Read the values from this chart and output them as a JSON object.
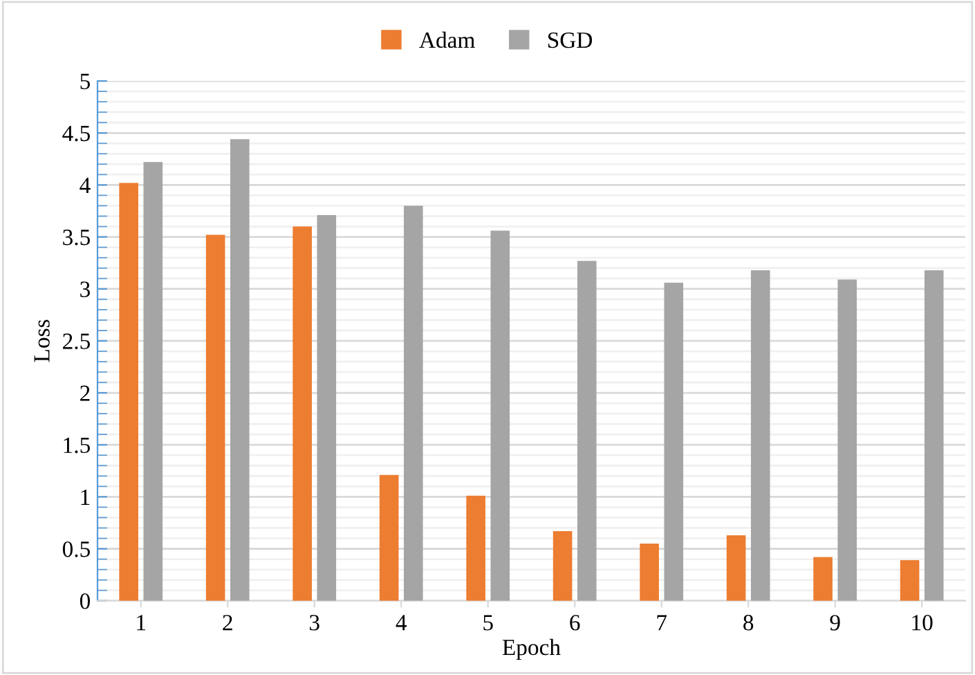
{
  "chart_data": {
    "type": "bar",
    "xlabel": "Epoch",
    "ylabel": "Loss",
    "categories": [
      "1",
      "2",
      "3",
      "4",
      "5",
      "6",
      "7",
      "8",
      "9",
      "10"
    ],
    "series": [
      {
        "name": "Adam",
        "color": "#ed7d31",
        "values": [
          4.02,
          3.52,
          3.6,
          1.21,
          1.01,
          0.67,
          0.55,
          0.63,
          0.42,
          0.39
        ]
      },
      {
        "name": "SGD",
        "color": "#a5a5a5",
        "values": [
          4.22,
          4.44,
          3.71,
          3.8,
          3.56,
          3.27,
          3.06,
          3.18,
          3.09,
          3.18
        ]
      }
    ],
    "ylim": [
      0,
      5
    ],
    "yticks": [
      0,
      0.5,
      1,
      1.5,
      2,
      2.5,
      3,
      3.5,
      4,
      4.5,
      5
    ],
    "grid": "y",
    "legend": "top"
  }
}
